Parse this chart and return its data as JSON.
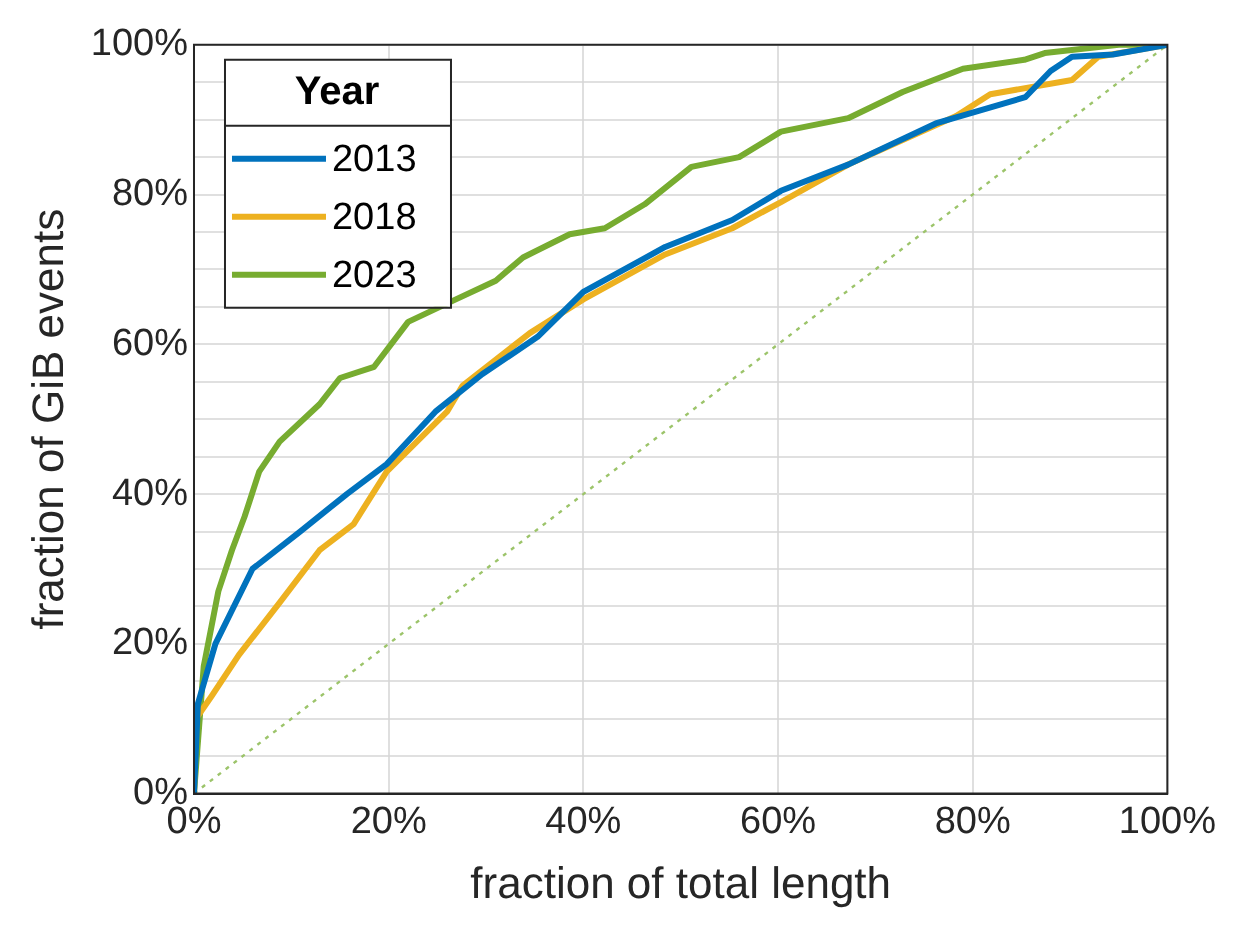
{
  "chart_data": {
    "type": "line",
    "xlabel": "fraction of total length",
    "ylabel": "fraction of GiB events",
    "legend_title": "Year",
    "legend": "top left",
    "grid": true,
    "marker": "none",
    "line_style": "solid",
    "xlim": [
      0,
      100
    ],
    "ylim": [
      0,
      100
    ],
    "xticks": [
      {
        "value": 0,
        "label": "0%"
      },
      {
        "value": 20,
        "label": "20%"
      },
      {
        "value": 40,
        "label": "40%"
      },
      {
        "value": 60,
        "label": "60%"
      },
      {
        "value": 80,
        "label": "80%"
      },
      {
        "value": 100,
        "label": "100%"
      }
    ],
    "yticks": [
      {
        "value": 0,
        "label": "0%"
      },
      {
        "value": 5,
        "label": null
      },
      {
        "value": 10,
        "label": null
      },
      {
        "value": 15,
        "label": null
      },
      {
        "value": 20,
        "label": "20%"
      },
      {
        "value": 25,
        "label": null
      },
      {
        "value": 30,
        "label": null
      },
      {
        "value": 35,
        "label": null
      },
      {
        "value": 40,
        "label": "40%"
      },
      {
        "value": 45,
        "label": null
      },
      {
        "value": 50,
        "label": null
      },
      {
        "value": 55,
        "label": null
      },
      {
        "value": 60,
        "label": "60%"
      },
      {
        "value": 65,
        "label": null
      },
      {
        "value": 70,
        "label": null
      },
      {
        "value": 75,
        "label": null
      },
      {
        "value": 80,
        "label": "80%"
      },
      {
        "value": 85,
        "label": null
      },
      {
        "value": 90,
        "label": null
      },
      {
        "value": 95,
        "label": null
      },
      {
        "value": 100,
        "label": "100%"
      }
    ],
    "series": [
      {
        "name": "2013",
        "color": "#0072bd",
        "x": [
          0,
          0.4,
          2.2,
          6,
          10.9,
          15.7,
          19.8,
          24.8,
          29.6,
          35.3,
          40,
          48.4,
          55.3,
          60.3,
          67.2,
          76.2,
          85.4,
          88,
          90.2,
          94.4,
          100
        ],
        "values": [
          0,
          12,
          20,
          30,
          35,
          40,
          44,
          51,
          56,
          61,
          67,
          73,
          76.6,
          80.5,
          84,
          89.5,
          93,
          96.5,
          98.4,
          98.7,
          100
        ]
      },
      {
        "name": "2018",
        "color": "#edb120",
        "x": [
          0,
          0.2,
          1.8,
          4.6,
          8.8,
          12.9,
          16.4,
          19.8,
          26,
          27.6,
          34.5,
          40,
          48.4,
          55.3,
          60.3,
          67.2,
          78.3,
          81.8,
          90.2,
          92.9,
          100
        ],
        "values": [
          0,
          10,
          13,
          18.5,
          25.5,
          32.5,
          36,
          43,
          51,
          54.5,
          61.5,
          66,
          72,
          75.5,
          79,
          84,
          90.5,
          93.4,
          95.3,
          98.4,
          100
        ]
      },
      {
        "name": "2023",
        "color": "#77ac30",
        "x": [
          0,
          1,
          2.5,
          3.9,
          5.2,
          6.7,
          8.8,
          12.9,
          15,
          18.5,
          22,
          26.9,
          31,
          33.8,
          38.6,
          42.2,
          46.3,
          51.1,
          56,
          60.3,
          67.2,
          72.8,
          79,
          85.3,
          87.4,
          95,
          100
        ],
        "values": [
          0,
          17,
          27,
          32.5,
          37,
          43,
          47,
          52,
          55.5,
          57,
          63,
          66,
          68.5,
          71.6,
          74.7,
          75.5,
          78.7,
          83.7,
          85,
          88.4,
          90.2,
          93.7,
          96.8,
          98,
          98.9,
          100,
          100
        ]
      },
      {
        "color": "#9cc46a",
        "line_style": "dotted",
        "x": [
          0,
          100
        ],
        "values": [
          0,
          100
        ]
      }
    ]
  }
}
